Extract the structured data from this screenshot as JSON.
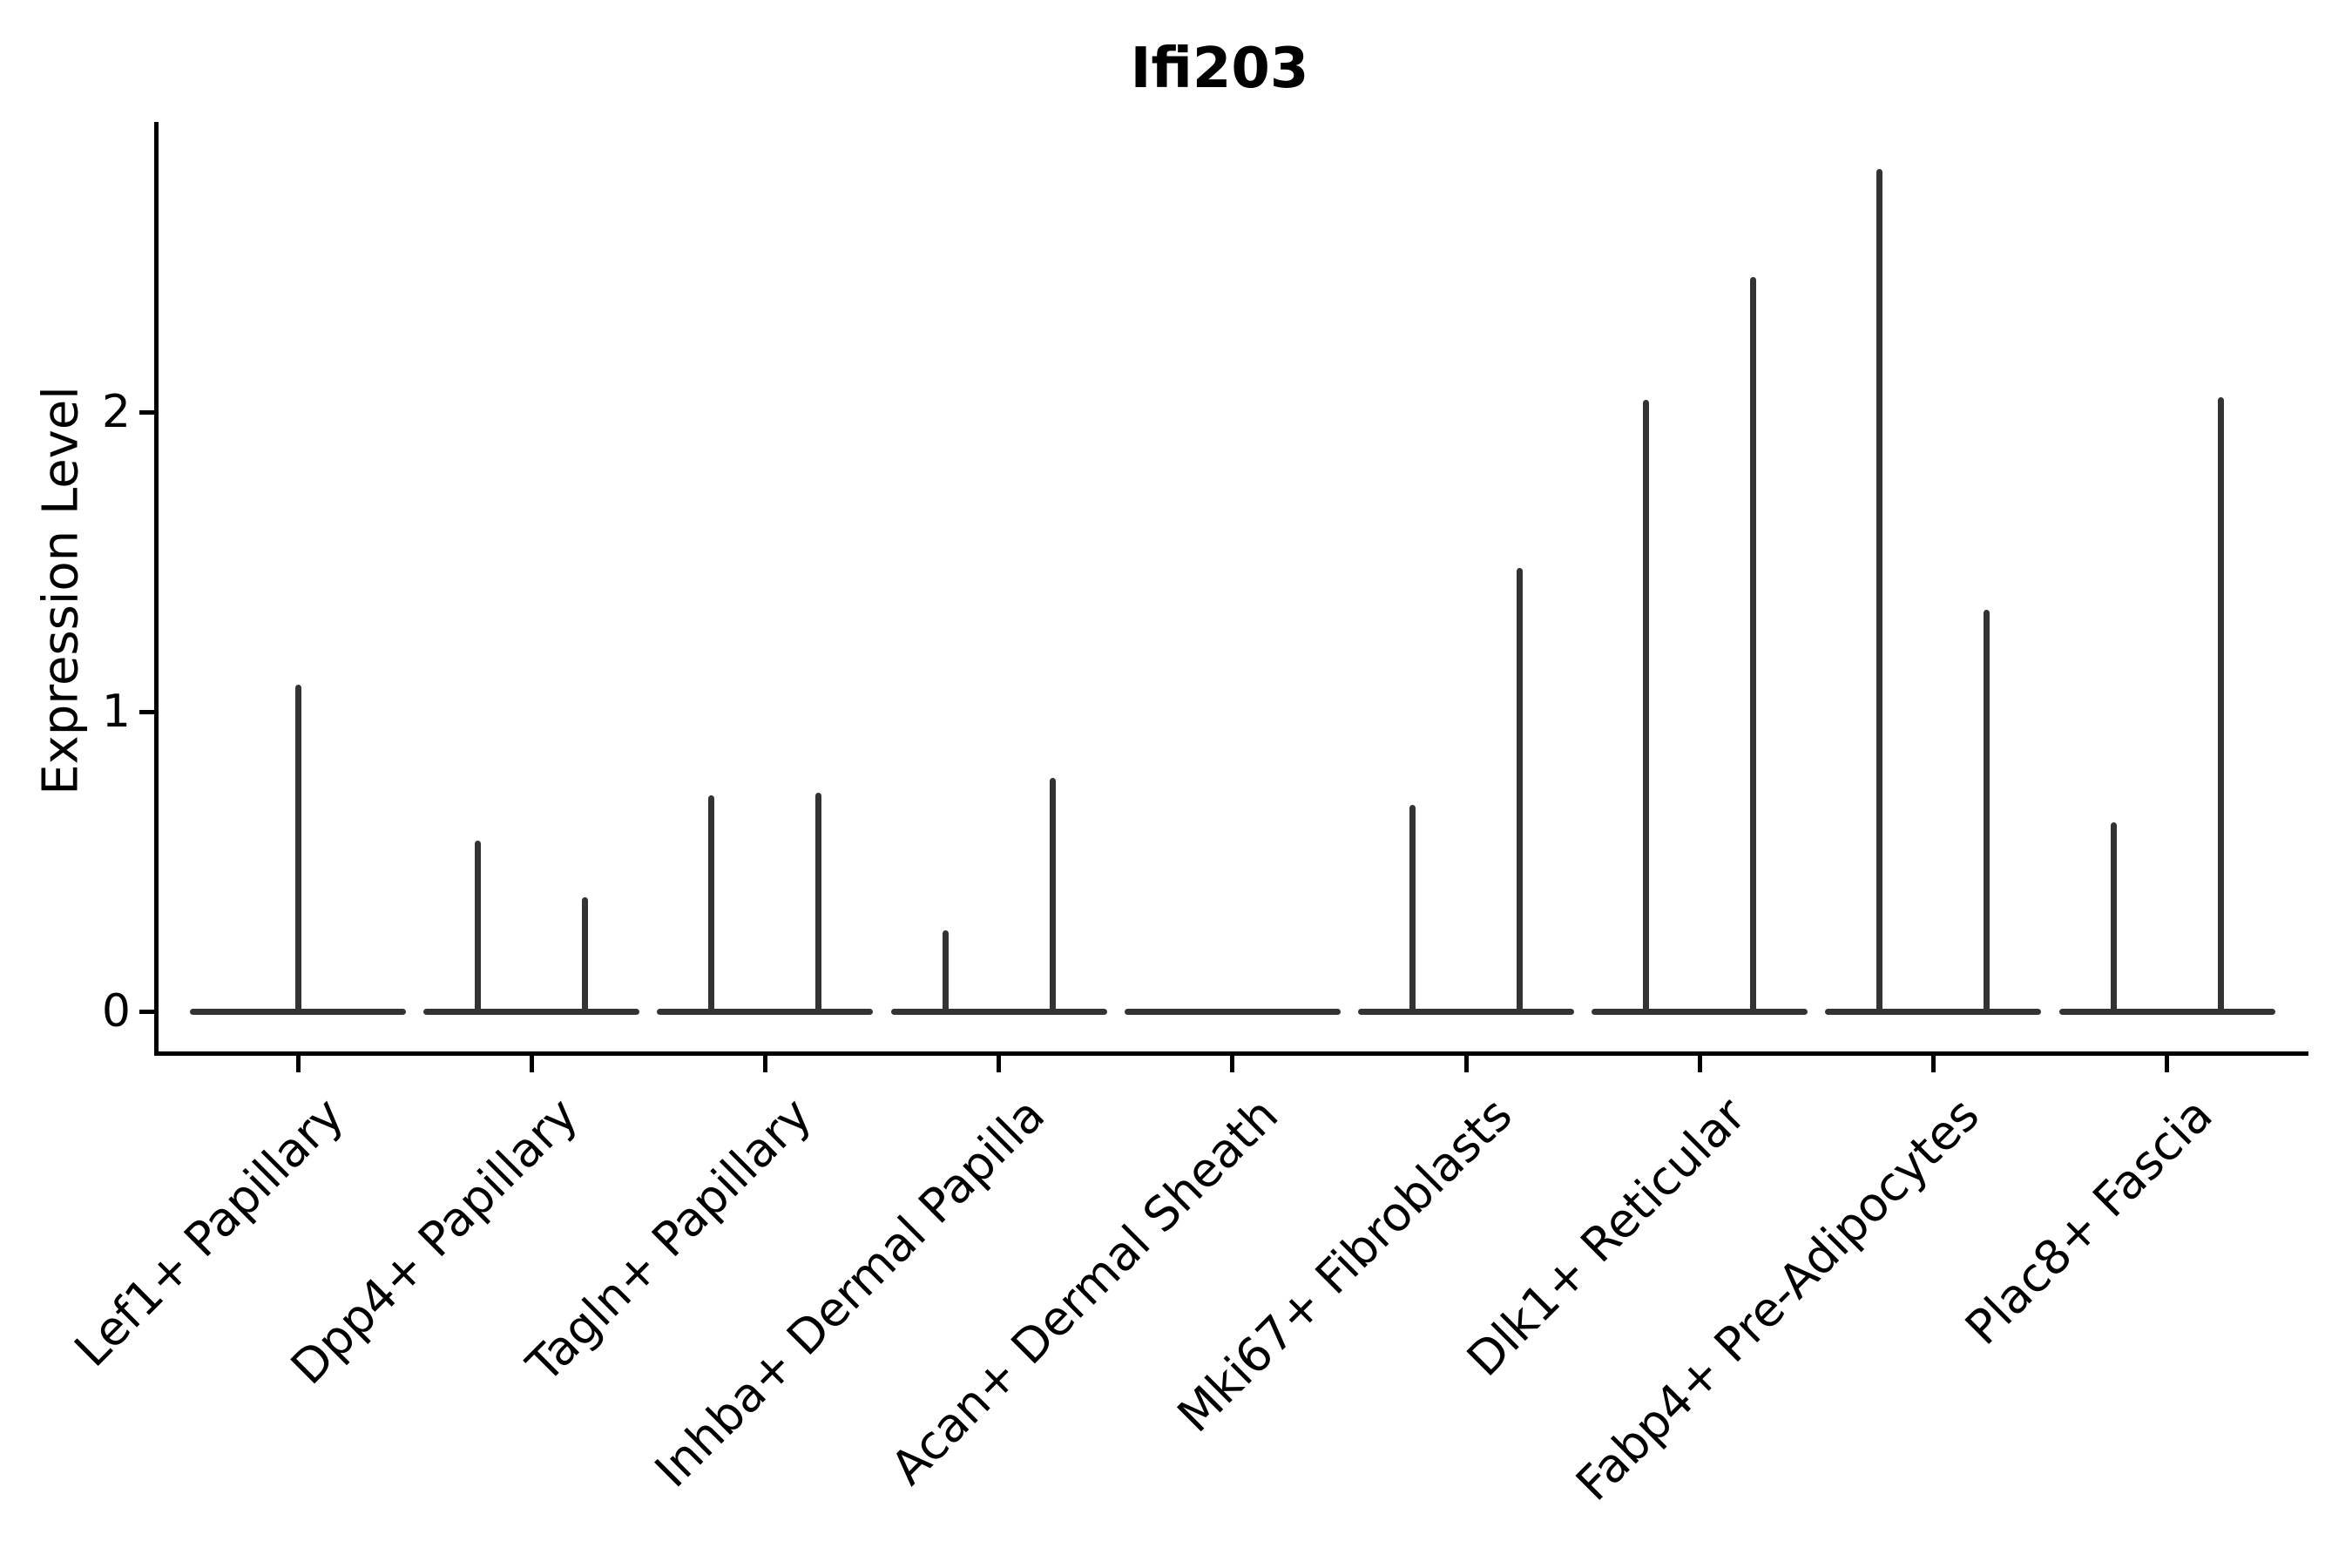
{
  "chart_data": {
    "type": "violin",
    "title": "Ifi203",
    "ylabel": "Expression Level",
    "xlabel": "",
    "ytick_labels": [
      "0",
      "1",
      "2"
    ],
    "ytick_values": [
      0,
      1,
      2
    ],
    "ylim": [
      -0.15,
      2.97
    ],
    "grid": false,
    "legend": null,
    "violin_color": "#333333",
    "axis_color": "#000000",
    "note": "Each category shows flat zero-density base with thin density spikes up to the max expression value",
    "categories": [
      {
        "label": "Lef1+ Papillary",
        "spikes": [
          {
            "pos": 0,
            "value": 1.09
          }
        ]
      },
      {
        "label": "Dpp4+ Papillary",
        "spikes": [
          {
            "pos": -1,
            "value": 0.57
          },
          {
            "pos": 1,
            "value": 0.38
          }
        ]
      },
      {
        "label": "Tagln+ Papillary",
        "spikes": [
          {
            "pos": -1,
            "value": 0.72
          },
          {
            "pos": 1,
            "value": 0.73
          }
        ]
      },
      {
        "label": "Inhba+ Dermal Papilla",
        "spikes": [
          {
            "pos": -1,
            "value": 0.27
          },
          {
            "pos": 1,
            "value": 0.78
          }
        ]
      },
      {
        "label": "Acan+ Dermal Sheath",
        "spikes": []
      },
      {
        "label": "Mki67+ Fibroblasts",
        "spikes": [
          {
            "pos": -1,
            "value": 0.69
          },
          {
            "pos": 1,
            "value": 1.48
          }
        ]
      },
      {
        "label": "Dlk1+ Reticular",
        "spikes": [
          {
            "pos": -1,
            "value": 2.04
          },
          {
            "pos": 1,
            "value": 2.45
          }
        ]
      },
      {
        "label": "Fabp4+ Pre-Adipocytes",
        "spikes": [
          {
            "pos": -1,
            "value": 2.81
          },
          {
            "pos": 1,
            "value": 1.34
          }
        ]
      },
      {
        "label": "Plac8+ Fascia",
        "spikes": [
          {
            "pos": -1,
            "value": 0.63
          },
          {
            "pos": 1,
            "value": 2.05
          }
        ]
      }
    ]
  }
}
